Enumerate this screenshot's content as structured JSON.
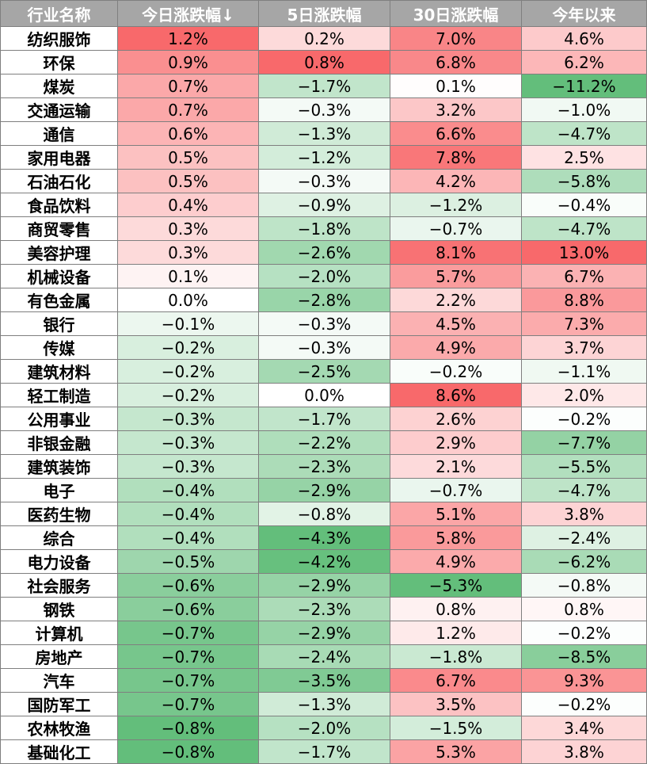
{
  "colors": {
    "header_bg": "#a6a6a6",
    "header_text": "#ffffff",
    "positive_scale": "#f8696b",
    "negative_scale": "#63be7b",
    "neutral": "#ffffff",
    "border": "#7f7f7f"
  },
  "chart_data": {
    "type": "table",
    "columns": [
      "行业名称",
      "今日涨跌幅↓",
      "5日涨跌幅",
      "30日涨跌幅",
      "今年以来"
    ],
    "sorted_by": "今日涨跌幅",
    "sort_order": "descending",
    "unit": "%",
    "rows": [
      {
        "name": "纺织服饰",
        "values": [
          "1.2%",
          "0.2%",
          "7.0%",
          "4.6%"
        ]
      },
      {
        "name": "环保",
        "values": [
          "0.9%",
          "0.8%",
          "6.8%",
          "6.2%"
        ]
      },
      {
        "name": "煤炭",
        "values": [
          "0.7%",
          "−1.7%",
          "0.1%",
          "−11.2%"
        ]
      },
      {
        "name": "交通运输",
        "values": [
          "0.7%",
          "−0.3%",
          "3.2%",
          "−1.0%"
        ]
      },
      {
        "name": "通信",
        "values": [
          "0.6%",
          "−1.3%",
          "6.6%",
          "−4.7%"
        ]
      },
      {
        "name": "家用电器",
        "values": [
          "0.5%",
          "−1.2%",
          "7.8%",
          "2.5%"
        ]
      },
      {
        "name": "石油石化",
        "values": [
          "0.5%",
          "−0.3%",
          "4.2%",
          "−5.8%"
        ]
      },
      {
        "name": "食品饮料",
        "values": [
          "0.4%",
          "−0.9%",
          "−1.2%",
          "−0.4%"
        ]
      },
      {
        "name": "商贸零售",
        "values": [
          "0.3%",
          "−1.8%",
          "−0.7%",
          "−4.7%"
        ]
      },
      {
        "name": "美容护理",
        "values": [
          "0.3%",
          "−2.6%",
          "8.1%",
          "13.0%"
        ]
      },
      {
        "name": "机械设备",
        "values": [
          "0.1%",
          "−2.0%",
          "5.7%",
          "6.7%"
        ]
      },
      {
        "name": "有色金属",
        "values": [
          "0.0%",
          "−2.8%",
          "2.2%",
          "8.8%"
        ]
      },
      {
        "name": "银行",
        "values": [
          "−0.1%",
          "−0.3%",
          "4.5%",
          "7.3%"
        ]
      },
      {
        "name": "传媒",
        "values": [
          "−0.2%",
          "−0.3%",
          "4.9%",
          "3.7%"
        ]
      },
      {
        "name": "建筑材料",
        "values": [
          "−0.2%",
          "−2.5%",
          "−0.2%",
          "−1.1%"
        ]
      },
      {
        "name": "轻工制造",
        "values": [
          "−0.2%",
          "0.0%",
          "8.6%",
          "2.0%"
        ]
      },
      {
        "name": "公用事业",
        "values": [
          "−0.3%",
          "−1.7%",
          "2.6%",
          "−0.2%"
        ]
      },
      {
        "name": "非银金融",
        "values": [
          "−0.3%",
          "−2.2%",
          "2.9%",
          "−7.7%"
        ]
      },
      {
        "name": "建筑装饰",
        "values": [
          "−0.3%",
          "−2.3%",
          "2.1%",
          "−5.5%"
        ]
      },
      {
        "name": "电子",
        "values": [
          "−0.4%",
          "−2.9%",
          "−0.7%",
          "−4.7%"
        ]
      },
      {
        "name": "医药生物",
        "values": [
          "−0.4%",
          "−0.8%",
          "5.1%",
          "3.8%"
        ]
      },
      {
        "name": "综合",
        "values": [
          "−0.4%",
          "−4.3%",
          "5.8%",
          "−2.4%"
        ]
      },
      {
        "name": "电力设备",
        "values": [
          "−0.5%",
          "−4.2%",
          "4.9%",
          "−6.2%"
        ]
      },
      {
        "name": "社会服务",
        "values": [
          "−0.6%",
          "−2.9%",
          "−5.3%",
          "−0.8%"
        ]
      },
      {
        "name": "钢铁",
        "values": [
          "−0.6%",
          "−2.3%",
          "0.8%",
          "0.8%"
        ]
      },
      {
        "name": "计算机",
        "values": [
          "−0.7%",
          "−2.9%",
          "1.2%",
          "−0.2%"
        ]
      },
      {
        "name": "房地产",
        "values": [
          "−0.7%",
          "−2.4%",
          "−1.8%",
          "−8.5%"
        ]
      },
      {
        "name": "汽车",
        "values": [
          "−0.7%",
          "−3.5%",
          "6.7%",
          "9.3%"
        ]
      },
      {
        "name": "国防军工",
        "values": [
          "−0.7%",
          "−1.3%",
          "3.5%",
          "−0.2%"
        ]
      },
      {
        "name": "农林牧渔",
        "values": [
          "−0.8%",
          "−2.0%",
          "−1.5%",
          "3.4%"
        ]
      },
      {
        "name": "基础化工",
        "values": [
          "−0.8%",
          "−1.7%",
          "5.3%",
          "3.8%"
        ]
      }
    ]
  }
}
